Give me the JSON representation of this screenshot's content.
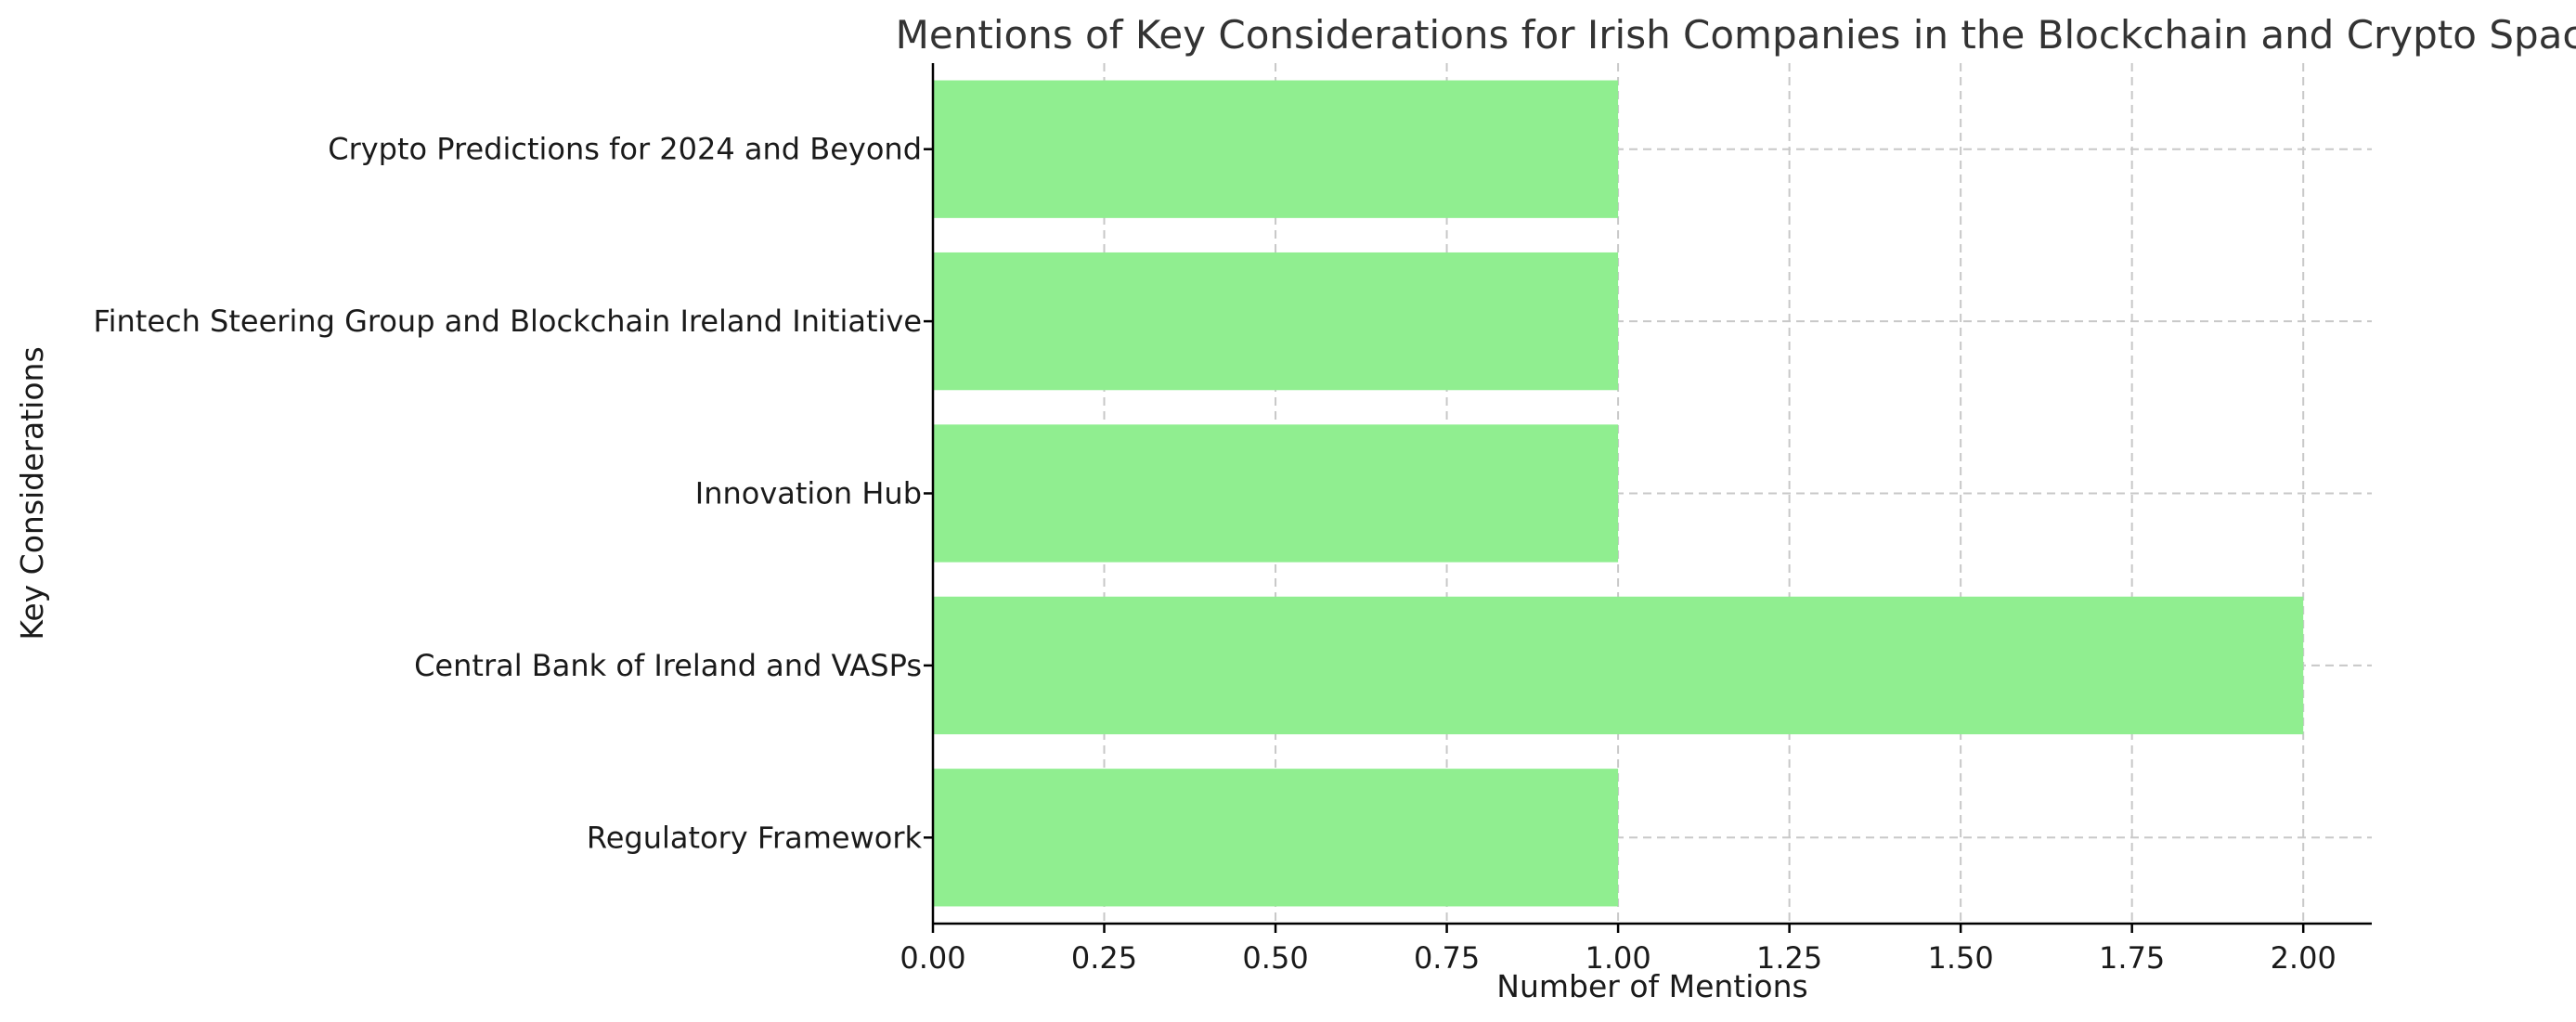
{
  "chart_data": {
    "type": "bar",
    "orientation": "horizontal",
    "title": "Mentions of Key Considerations for Irish Companies in the Blockchain and Crypto Space",
    "xlabel": "Number of Mentions",
    "ylabel": "Key Considerations",
    "categories": [
      "Regulatory Framework",
      "Central Bank of Ireland and VASPs",
      "Innovation Hub",
      "Fintech Steering Group and Blockchain Ireland Initiative",
      "Crypto Predictions for 2024 and Beyond"
    ],
    "values": [
      1,
      2,
      1,
      1,
      1
    ],
    "xlim": [
      0,
      2.1
    ],
    "xticks": [
      "0.00",
      "0.25",
      "0.50",
      "0.75",
      "1.00",
      "1.25",
      "1.50",
      "1.75",
      "2.00"
    ],
    "grid": true,
    "bar_color": "#90ee90"
  }
}
